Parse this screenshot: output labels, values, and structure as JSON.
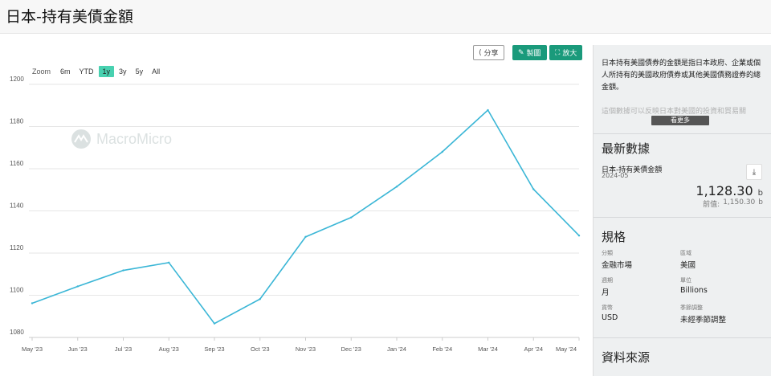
{
  "header": {
    "title": "日本-持有美債金額"
  },
  "toolbar": {
    "share_label": "分享",
    "make_label": "製圖",
    "zoom_label": "放大"
  },
  "range_selector": {
    "label": "Zoom",
    "options": [
      "6m",
      "YTD",
      "1y",
      "3y",
      "5y",
      "All"
    ],
    "active": "1y"
  },
  "watermark": {
    "text": "MacroMicro"
  },
  "chart_data": {
    "type": "line",
    "x": [
      "May '23",
      "Jun '23",
      "Jul '23",
      "Aug '23",
      "Sep '23",
      "Oct '23",
      "Nov '23",
      "Dec '23",
      "Jan '24",
      "Feb '24",
      "Mar '24",
      "Apr '24",
      "May '24"
    ],
    "series": [
      {
        "values": [
          1096.2,
          1104.2,
          1111.8,
          1115.5,
          1086.6,
          1098.2,
          1127.7,
          1136.9,
          1151.5,
          1168.0,
          1187.8,
          1150.3,
          1128.3
        ]
      }
    ],
    "yticks": [
      "1080",
      "1100",
      "1120",
      "1140",
      "1160",
      "1180",
      "1200"
    ],
    "ylim": [
      1080,
      1200
    ],
    "line_color": "#3ab6d6",
    "grid": true
  },
  "sidebar": {
    "description": "日本持有美國債券的金額是指日本政府、企業或個人所持有的美國政府債券或其他美國債務證券的總金額。",
    "description_more": "這個數據可以反映日本對美國的投資和貿易關",
    "more_label": "看更多",
    "latest": {
      "title": "最新數據",
      "name": "日本-持有美債金額",
      "date": "2024-05",
      "value": "1,128.30",
      "unit": "b",
      "prev_label": "前值:",
      "prev_value": "1,150.30",
      "prev_unit": "b"
    },
    "specs": {
      "title": "規格",
      "category_k": "分類",
      "category_v": "金融市場",
      "region_k": "區域",
      "region_v": "美國",
      "period_k": "週期",
      "period_v": "月",
      "unit_k": "單位",
      "unit_v": "Billions",
      "currency_k": "貨幣",
      "currency_v": "USD",
      "seasonal_k": "季節調整",
      "seasonal_v": "未經季節調整"
    },
    "source_title": "資料來源"
  },
  "colors": {
    "accent": "#1a9a7b",
    "active_range": "#48d1b0",
    "line": "#3ab6d6"
  }
}
